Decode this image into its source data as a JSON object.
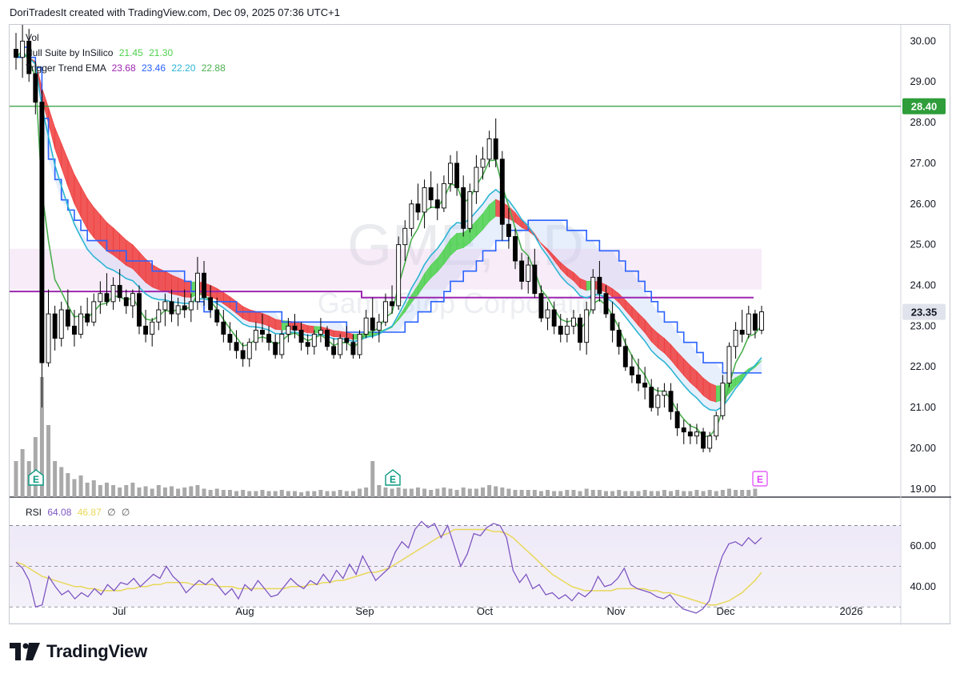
{
  "header": {
    "text": "DoriTradesIt created with TradingView.com, Dec 09, 2025 07:36 UTC+1"
  },
  "brand": {
    "name": "TradingView"
  },
  "watermark": {
    "symbol": "GME, 1D",
    "name": "GameStop Corporation"
  },
  "legend": {
    "vol_label": "Vol",
    "hull": {
      "name": "Hull Suite by InSilico",
      "v1": "21.45",
      "v2": "21.30"
    },
    "trigger": {
      "name": "Trigger Trend EMA",
      "v1": "23.68",
      "v2": "23.46",
      "v3": "22.20",
      "v4": "22.88"
    },
    "rsi": {
      "name": "RSI",
      "v1": "64.08",
      "v2": "46.87",
      "v3": "∅",
      "v4": "∅"
    }
  },
  "colors": {
    "up": "#ffffff",
    "down": "#000000",
    "wick": "#000000",
    "hull_up": "#4cd14c",
    "hull_down": "#ee3b3b",
    "ema_fast": "#4caf50",
    "ema_mid": "#2cb5d4",
    "ema_slow": "#2962ff",
    "purple_line": "#9c27b0",
    "resistance": "#2e9d3a",
    "rsi_line": "#7e57c2",
    "rsi_ma": "#e8d85a",
    "rsi_band": "#ede7f6",
    "volume": "#a9a9a9",
    "grid": "#f0f3fa",
    "axis_text": "#131722",
    "earnings": "#089981",
    "earnings_next": "#e040fb"
  },
  "chart_data": {
    "type": "candlestick",
    "symbol": "GME",
    "timeframe": "1D",
    "y_axis": {
      "min": 18.8,
      "max": 30.4,
      "ticks": [
        "30.00",
        "29.00",
        "28.00",
        "27.00",
        "26.00",
        "25.00",
        "24.00",
        "23.00",
        "22.00",
        "21.00",
        "20.00",
        "19.00"
      ]
    },
    "x_axis": {
      "ticks": [
        "Jul",
        "Aug",
        "Sep",
        "Oct",
        "Nov",
        "Dec",
        "2026"
      ]
    },
    "resistance": {
      "value": 28.4,
      "label": "28.40"
    },
    "last_price": {
      "value": 23.35,
      "label": "23.35"
    },
    "earnings": [
      {
        "label": "E",
        "future": false
      },
      {
        "label": "E",
        "future": false
      },
      {
        "label": "E",
        "future": true
      }
    ],
    "rsi": {
      "y_ticks": [
        "60.00",
        "40.00"
      ],
      "band": [
        30,
        70
      ],
      "last": 64.08,
      "ma_last": 46.87,
      "series": [
        52,
        49,
        43,
        30,
        31,
        45,
        40,
        36,
        38,
        34,
        37,
        35,
        39,
        36,
        41,
        38,
        42,
        41,
        44,
        40,
        43,
        46,
        44,
        50,
        45,
        42,
        37,
        40,
        43,
        41,
        44,
        40,
        36,
        39,
        34,
        41,
        38,
        43,
        39,
        35,
        36,
        40,
        44,
        41,
        39,
        43,
        41,
        46,
        42,
        48,
        44,
        51,
        46,
        55,
        49,
        43,
        46,
        49,
        57,
        62,
        59,
        68,
        72,
        69,
        71,
        64,
        70,
        60,
        50,
        56,
        66,
        65,
        69,
        71,
        70,
        64,
        48,
        42,
        46,
        39,
        41,
        36,
        37,
        34,
        36,
        33,
        37,
        35,
        38,
        45,
        40,
        41,
        44,
        49,
        41,
        39,
        38,
        37,
        35,
        34,
        36,
        32,
        29,
        28,
        27,
        29,
        33,
        45,
        55,
        61,
        62,
        60,
        64,
        61,
        64
      ],
      "ma_series": [
        52,
        51,
        49,
        47,
        45,
        44,
        43,
        42,
        41,
        40,
        40,
        39,
        39,
        38,
        38,
        38,
        38,
        39,
        39,
        40,
        40,
        41,
        41,
        42,
        42,
        42,
        42,
        41,
        41,
        41,
        41,
        40,
        40,
        40,
        39,
        39,
        39,
        39,
        39,
        39,
        39,
        39,
        40,
        40,
        40,
        41,
        41,
        42,
        42,
        43,
        43,
        44,
        45,
        46,
        47,
        47,
        48,
        49,
        51,
        53,
        55,
        57,
        59,
        61,
        63,
        65,
        66,
        68,
        68,
        68,
        68,
        68,
        68,
        67,
        67,
        66,
        64,
        61,
        58,
        55,
        52,
        49,
        46,
        44,
        42,
        40,
        39,
        38,
        38,
        38,
        38,
        38,
        39,
        39,
        39,
        39,
        39,
        38,
        38,
        37,
        37,
        36,
        35,
        34,
        33,
        32,
        31,
        31,
        32,
        33,
        35,
        37,
        40,
        43,
        47
      ]
    },
    "candles": [
      [
        29.8,
        30.2,
        29.3,
        29.6
      ],
      [
        29.6,
        30.4,
        29.1,
        30.0
      ],
      [
        30.0,
        30.3,
        29.0,
        29.2
      ],
      [
        29.2,
        29.5,
        28.2,
        28.5
      ],
      [
        28.5,
        28.8,
        21.0,
        22.1
      ],
      [
        22.1,
        23.9,
        22.0,
        23.3
      ],
      [
        23.3,
        23.5,
        22.4,
        22.7
      ],
      [
        22.7,
        23.6,
        22.5,
        23.4
      ],
      [
        23.4,
        23.9,
        22.9,
        23.0
      ],
      [
        23.0,
        23.4,
        22.5,
        22.8
      ],
      [
        22.8,
        23.5,
        22.7,
        23.3
      ],
      [
        23.3,
        23.7,
        23.0,
        23.1
      ],
      [
        23.1,
        23.8,
        23.0,
        23.6
      ],
      [
        23.6,
        24.1,
        23.3,
        23.8
      ],
      [
        23.8,
        24.3,
        23.5,
        23.6
      ],
      [
        23.6,
        24.2,
        23.4,
        24.0
      ],
      [
        24.0,
        24.4,
        23.6,
        23.7
      ],
      [
        23.7,
        23.9,
        23.3,
        23.5
      ],
      [
        23.5,
        23.9,
        23.2,
        23.8
      ],
      [
        23.8,
        24.0,
        22.8,
        23.0
      ],
      [
        23.0,
        23.4,
        22.6,
        22.8
      ],
      [
        22.8,
        23.2,
        22.5,
        23.1
      ],
      [
        23.1,
        23.6,
        22.9,
        23.4
      ],
      [
        23.4,
        23.8,
        23.0,
        23.6
      ],
      [
        23.6,
        23.9,
        23.1,
        23.3
      ],
      [
        23.3,
        23.7,
        23.0,
        23.5
      ],
      [
        23.5,
        23.9,
        23.2,
        23.4
      ],
      [
        23.4,
        23.8,
        23.1,
        23.6
      ],
      [
        23.6,
        24.7,
        23.4,
        24.3
      ],
      [
        24.3,
        24.6,
        23.5,
        23.7
      ],
      [
        23.7,
        24.0,
        23.2,
        23.4
      ],
      [
        23.4,
        23.7,
        23.0,
        23.1
      ],
      [
        23.1,
        23.4,
        22.6,
        22.8
      ],
      [
        22.8,
        23.1,
        22.4,
        22.6
      ],
      [
        22.6,
        22.9,
        22.2,
        22.4
      ],
      [
        22.4,
        22.6,
        22.0,
        22.2
      ],
      [
        22.2,
        22.7,
        22.0,
        22.6
      ],
      [
        22.6,
        23.1,
        22.4,
        22.9
      ],
      [
        22.9,
        23.3,
        22.6,
        22.8
      ],
      [
        22.8,
        23.0,
        22.4,
        22.6
      ],
      [
        22.6,
        22.8,
        22.2,
        22.3
      ],
      [
        22.3,
        22.9,
        22.2,
        22.8
      ],
      [
        22.8,
        23.2,
        22.6,
        23.0
      ],
      [
        23.0,
        23.3,
        22.7,
        22.9
      ],
      [
        22.9,
        23.1,
        22.4,
        22.6
      ],
      [
        22.6,
        22.8,
        22.3,
        22.5
      ],
      [
        22.5,
        22.9,
        22.3,
        22.8
      ],
      [
        22.8,
        23.2,
        22.6,
        22.9
      ],
      [
        22.9,
        23.0,
        22.4,
        22.5
      ],
      [
        22.5,
        22.7,
        22.2,
        22.3
      ],
      [
        22.3,
        22.8,
        22.2,
        22.7
      ],
      [
        22.7,
        23.0,
        22.4,
        22.6
      ],
      [
        22.6,
        22.8,
        22.2,
        22.3
      ],
      [
        22.3,
        22.9,
        22.2,
        22.8
      ],
      [
        22.8,
        23.4,
        22.7,
        23.2
      ],
      [
        23.2,
        23.7,
        22.7,
        22.9
      ],
      [
        22.9,
        23.3,
        22.6,
        23.1
      ],
      [
        23.1,
        23.8,
        23.0,
        23.6
      ],
      [
        23.6,
        24.0,
        23.3,
        23.5
      ],
      [
        23.5,
        25.2,
        23.4,
        25.0
      ],
      [
        25.0,
        25.6,
        24.6,
        25.4
      ],
      [
        25.4,
        26.1,
        25.2,
        26.0
      ],
      [
        26.0,
        26.5,
        25.6,
        25.8
      ],
      [
        25.8,
        26.6,
        25.4,
        26.4
      ],
      [
        26.4,
        26.8,
        25.9,
        26.1
      ],
      [
        26.1,
        26.5,
        25.6,
        25.9
      ],
      [
        25.9,
        26.7,
        25.8,
        26.5
      ],
      [
        26.5,
        27.2,
        26.3,
        27.0
      ],
      [
        27.0,
        27.3,
        26.2,
        26.4
      ],
      [
        26.4,
        26.7,
        25.2,
        25.4
      ],
      [
        25.4,
        26.5,
        25.3,
        26.3
      ],
      [
        26.3,
        27.2,
        26.0,
        26.9
      ],
      [
        26.9,
        27.4,
        26.6,
        27.1
      ],
      [
        27.1,
        27.8,
        26.9,
        27.6
      ],
      [
        27.6,
        28.1,
        26.9,
        27.1
      ],
      [
        27.1,
        27.3,
        25.1,
        25.5
      ],
      [
        25.5,
        25.9,
        24.9,
        25.2
      ],
      [
        25.2,
        25.4,
        24.4,
        24.6
      ],
      [
        24.6,
        24.8,
        23.9,
        24.1
      ],
      [
        24.1,
        24.7,
        23.8,
        24.5
      ],
      [
        24.5,
        24.9,
        23.7,
        23.8
      ],
      [
        23.8,
        24.0,
        23.1,
        23.2
      ],
      [
        23.2,
        23.6,
        22.9,
        23.4
      ],
      [
        23.4,
        23.6,
        22.8,
        23.0
      ],
      [
        23.0,
        23.3,
        22.6,
        22.8
      ],
      [
        22.8,
        23.2,
        22.6,
        23.0
      ],
      [
        23.0,
        23.4,
        22.8,
        23.2
      ],
      [
        23.2,
        23.3,
        22.4,
        22.6
      ],
      [
        22.6,
        23.6,
        22.3,
        23.4
      ],
      [
        23.4,
        24.4,
        23.3,
        24.2
      ],
      [
        24.2,
        24.6,
        23.6,
        23.8
      ],
      [
        23.8,
        24.0,
        23.2,
        23.3
      ],
      [
        23.3,
        23.6,
        22.6,
        22.9
      ],
      [
        22.9,
        23.1,
        22.3,
        22.5
      ],
      [
        22.5,
        22.7,
        21.9,
        22.0
      ],
      [
        22.0,
        22.3,
        21.6,
        21.8
      ],
      [
        21.8,
        22.2,
        21.4,
        21.6
      ],
      [
        21.6,
        22.0,
        21.2,
        21.5
      ],
      [
        21.5,
        21.7,
        20.9,
        21.0
      ],
      [
        21.0,
        21.5,
        20.8,
        21.3
      ],
      [
        21.3,
        21.6,
        21.0,
        21.4
      ],
      [
        21.4,
        21.6,
        20.7,
        20.9
      ],
      [
        20.9,
        21.1,
        20.3,
        20.5
      ],
      [
        20.5,
        20.7,
        20.1,
        20.4
      ],
      [
        20.4,
        20.6,
        20.1,
        20.3
      ],
      [
        20.3,
        20.6,
        20.1,
        20.4
      ],
      [
        20.4,
        20.5,
        19.9,
        20.0
      ],
      [
        20.0,
        20.4,
        19.9,
        20.3
      ],
      [
        20.3,
        20.9,
        20.2,
        20.8
      ],
      [
        20.8,
        21.8,
        20.7,
        21.6
      ],
      [
        21.6,
        22.6,
        21.5,
        22.5
      ],
      [
        22.5,
        23.1,
        22.2,
        22.9
      ],
      [
        22.9,
        23.4,
        22.6,
        22.8
      ],
      [
        22.8,
        23.5,
        22.7,
        23.3
      ],
      [
        23.3,
        23.4,
        22.7,
        22.9
      ],
      [
        22.9,
        23.5,
        22.8,
        23.35
      ]
    ],
    "volume": [
      0.3,
      0.4,
      0.3,
      0.5,
      1.0,
      0.6,
      0.3,
      0.25,
      0.2,
      0.15,
      0.18,
      0.12,
      0.14,
      0.1,
      0.12,
      0.1,
      0.08,
      0.1,
      0.12,
      0.08,
      0.09,
      0.07,
      0.1,
      0.08,
      0.09,
      0.07,
      0.08,
      0.09,
      0.1,
      0.07,
      0.06,
      0.07,
      0.06,
      0.06,
      0.05,
      0.06,
      0.05,
      0.05,
      0.06,
      0.05,
      0.05,
      0.06,
      0.05,
      0.05,
      0.04,
      0.05,
      0.05,
      0.06,
      0.05,
      0.05,
      0.06,
      0.05,
      0.05,
      0.07,
      0.08,
      0.3,
      0.1,
      0.08,
      0.07,
      0.08,
      0.07,
      0.07,
      0.08,
      0.07,
      0.06,
      0.07,
      0.08,
      0.07,
      0.06,
      0.08,
      0.07,
      0.07,
      0.08,
      0.1,
      0.09,
      0.08,
      0.07,
      0.06,
      0.06,
      0.06,
      0.06,
      0.05,
      0.06,
      0.05,
      0.05,
      0.06,
      0.06,
      0.05,
      0.07,
      0.06,
      0.06,
      0.05,
      0.05,
      0.06,
      0.05,
      0.05,
      0.05,
      0.06,
      0.05,
      0.05,
      0.06,
      0.05,
      0.06,
      0.05,
      0.05,
      0.06,
      0.05,
      0.06,
      0.05,
      0.06,
      0.07,
      0.06,
      0.06,
      0.06,
      0.07
    ]
  }
}
